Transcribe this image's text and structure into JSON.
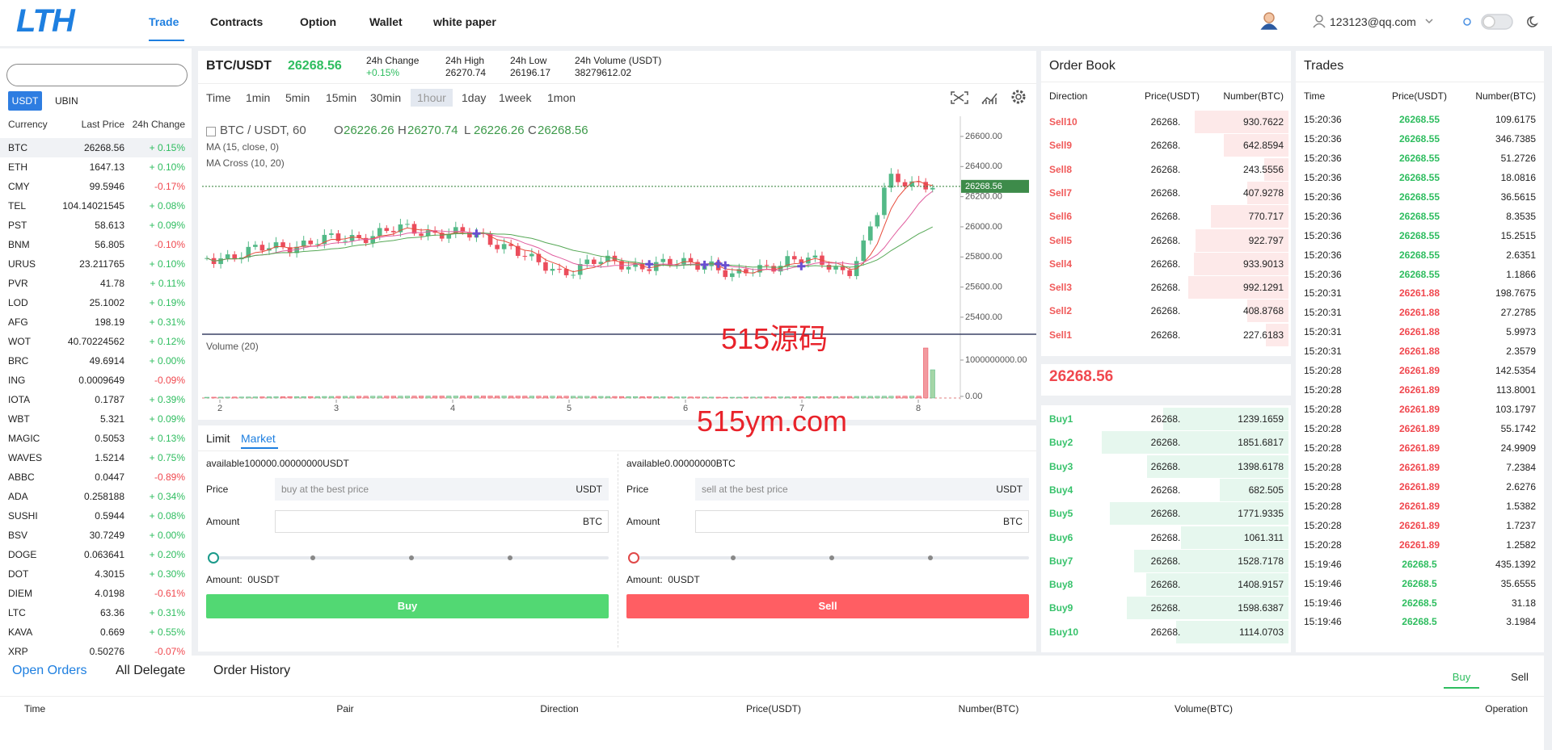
{
  "nav": {
    "logo": "LTH",
    "menu": [
      "Trade",
      "Contracts",
      "Option",
      "Wallet",
      "white paper"
    ],
    "user": "123123@qq.com"
  },
  "markets": {
    "tabs": [
      "USDT",
      "UBIN"
    ],
    "headers": [
      "Currency",
      "Last Price",
      "24h Change"
    ],
    "rows": [
      [
        "BTC",
        "26268.56",
        "+ 0.15%"
      ],
      [
        "ETH",
        "1647.13",
        "+ 0.10%"
      ],
      [
        "CMY",
        "99.5946",
        "-0.17%"
      ],
      [
        "TEL",
        "104.14021545",
        "+ 0.08%"
      ],
      [
        "PST",
        "58.613",
        "+ 0.09%"
      ],
      [
        "BNM",
        "56.805",
        "-0.10%"
      ],
      [
        "URUS",
        "23.211765",
        "+ 0.10%"
      ],
      [
        "PVR",
        "41.78",
        "+ 0.11%"
      ],
      [
        "LOD",
        "25.1002",
        "+ 0.19%"
      ],
      [
        "AFG",
        "198.19",
        "+ 0.31%"
      ],
      [
        "WOT",
        "40.70224562",
        "+ 0.12%"
      ],
      [
        "BRC",
        "49.6914",
        "+ 0.00%"
      ],
      [
        "ING",
        "0.0009649",
        "-0.09%"
      ],
      [
        "IOTA",
        "0.1787",
        "+ 0.39%"
      ],
      [
        "WBT",
        "5.321",
        "+ 0.09%"
      ],
      [
        "MAGIC",
        "0.5053",
        "+ 0.13%"
      ],
      [
        "WAVES",
        "1.5214",
        "+ 0.75%"
      ],
      [
        "ABBC",
        "0.0447",
        "-0.89%"
      ],
      [
        "ADA",
        "0.258188",
        "+ 0.34%"
      ],
      [
        "SUSHI",
        "0.5944",
        "+ 0.08%"
      ],
      [
        "BSV",
        "30.7249",
        "+ 0.00%"
      ],
      [
        "DOGE",
        "0.063641",
        "+ 0.20%"
      ],
      [
        "DOT",
        "4.3015",
        "+ 0.30%"
      ],
      [
        "DIEM",
        "4.0198",
        "-0.61%"
      ],
      [
        "LTC",
        "63.36",
        "+ 0.31%"
      ],
      [
        "KAVA",
        "0.669",
        "+ 0.55%"
      ],
      [
        "XRP",
        "0.50276",
        "-0.07%"
      ]
    ]
  },
  "ticker": {
    "pair": "BTC/USDT",
    "price": "26268.56",
    "stats": [
      {
        "label": "24h Change",
        "value": "+0.15%"
      },
      {
        "label": "24h High",
        "value": "26270.74"
      },
      {
        "label": "24h Low",
        "value": "26196.17"
      },
      {
        "label": "24h Volume (USDT)",
        "value": "38279612.02"
      }
    ]
  },
  "intervals": [
    "Time",
    "1min",
    "5min",
    "15min",
    "30min",
    "1hour",
    "1day",
    "1week",
    "1mon"
  ],
  "price_chart": {
    "type": "candlestick",
    "symbol": "BTC / USDT, 60",
    "ohlc": [
      {
        "key": "O",
        "value": "26226.26"
      },
      {
        "key": "H",
        "value": "26270.74"
      },
      {
        "key": "L",
        "value": "26226.26"
      },
      {
        "key": "C",
        "value": "26268.56"
      }
    ],
    "studies": [
      "MA (15, close, 0)",
      "MA Cross (10, 20)"
    ],
    "volume_study": "Volume (20)",
    "ylim": [
      25287,
      26734
    ],
    "yticks": [
      {
        "value": 26600,
        "label": "26600.00"
      },
      {
        "value": 26400,
        "label": "26400.00"
      },
      {
        "value": 26200,
        "label": "26200.00"
      },
      {
        "value": 26000,
        "label": "26000.00"
      },
      {
        "value": 25800,
        "label": "25800.00"
      },
      {
        "value": 25600,
        "label": "25600.00"
      },
      {
        "value": 25400,
        "label": "25400.00"
      }
    ],
    "volume_ylim": [
      -89000000,
      1578000000
    ],
    "volume_yticks": [
      {
        "value": 1000000000,
        "label": "1000000000.00"
      },
      {
        "value": 0,
        "label": "0.00"
      }
    ],
    "xlim": [
      1.847,
      8.361
    ],
    "xticks": [
      2,
      3,
      4,
      5,
      6,
      7,
      8
    ],
    "last_price": 26268.56
  },
  "watermark": [
    "515源码",
    "515ym.com"
  ],
  "trade_form": {
    "tabs": [
      "Limit",
      "Market"
    ],
    "buy": {
      "available": "available100000.00000000USDT",
      "price_label": "Price",
      "price_placeholder": "buy at the best price",
      "price_unit": "USDT",
      "amount_label": "Amount",
      "amount_unit": "BTC",
      "total": "Amount:  0USDT",
      "button": "Buy"
    },
    "sell": {
      "available": "available0.00000000BTC",
      "price_label": "Price",
      "price_placeholder": "sell at the best price",
      "price_unit": "USDT",
      "amount_label": "Amount",
      "amount_unit": "BTC",
      "total": "Amount:  0USDT",
      "button": "Sell"
    }
  },
  "order_book": {
    "title": "Order Book",
    "headers": [
      "Direction",
      "Price(USDT)",
      "Number(BTC)"
    ],
    "sells": [
      [
        "Sell10",
        "26268.",
        "930.7622"
      ],
      [
        "Sell9",
        "26268.",
        "642.8594"
      ],
      [
        "Sell8",
        "26268.",
        "243.5556"
      ],
      [
        "Sell7",
        "26268.",
        "407.9278"
      ],
      [
        "Sell6",
        "26268.",
        "770.717"
      ],
      [
        "Sell5",
        "26268.",
        "922.797"
      ],
      [
        "Sell4",
        "26268.",
        "933.9013"
      ],
      [
        "Sell3",
        "26268.",
        "992.1291"
      ],
      [
        "Sell2",
        "26268.",
        "408.8768"
      ],
      [
        "Sell1",
        "26268.",
        "227.6183"
      ]
    ],
    "mid_price": "26268.56",
    "buys": [
      [
        "Buy1",
        "26268.",
        "1239.1659"
      ],
      [
        "Buy2",
        "26268.",
        "1851.6817"
      ],
      [
        "Buy3",
        "26268.",
        "1398.6178"
      ],
      [
        "Buy4",
        "26268.",
        "682.505"
      ],
      [
        "Buy5",
        "26268.",
        "1771.9335"
      ],
      [
        "Buy6",
        "26268.",
        "1061.311"
      ],
      [
        "Buy7",
        "26268.",
        "1528.7178"
      ],
      [
        "Buy8",
        "26268.",
        "1408.9157"
      ],
      [
        "Buy9",
        "26268.",
        "1598.6387"
      ],
      [
        "Buy10",
        "26268.",
        "1114.0703"
      ]
    ]
  },
  "trades": {
    "title": "Trades",
    "headers": [
      "Time",
      "Price(USDT)",
      "Number(BTC)"
    ],
    "rows": [
      [
        "15:20:36",
        "26268.55",
        "109.6175",
        "#2ebd5f"
      ],
      [
        "15:20:36",
        "26268.55",
        "346.7385",
        "#2ebd5f"
      ],
      [
        "15:20:36",
        "26268.55",
        "51.2726",
        "#2ebd5f"
      ],
      [
        "15:20:36",
        "26268.55",
        "18.0816",
        "#2ebd5f"
      ],
      [
        "15:20:36",
        "26268.55",
        "36.5615",
        "#2ebd5f"
      ],
      [
        "15:20:36",
        "26268.55",
        "8.3535",
        "#2ebd5f"
      ],
      [
        "15:20:36",
        "26268.55",
        "15.2515",
        "#2ebd5f"
      ],
      [
        "15:20:36",
        "26268.55",
        "2.6351",
        "#2ebd5f"
      ],
      [
        "15:20:36",
        "26268.55",
        "1.1866",
        "#2ebd5f"
      ],
      [
        "15:20:31",
        "26261.88",
        "198.7675",
        "#f0484f"
      ],
      [
        "15:20:31",
        "26261.88",
        "27.2785",
        "#f0484f"
      ],
      [
        "15:20:31",
        "26261.88",
        "5.9973",
        "#f0484f"
      ],
      [
        "15:20:31",
        "26261.88",
        "2.3579",
        "#f0484f"
      ],
      [
        "15:20:28",
        "26261.89",
        "142.5354",
        "#f0484f"
      ],
      [
        "15:20:28",
        "26261.89",
        "113.8001",
        "#f0484f"
      ],
      [
        "15:20:28",
        "26261.89",
        "103.1797",
        "#f0484f"
      ],
      [
        "15:20:28",
        "26261.89",
        "55.1742",
        "#f0484f"
      ],
      [
        "15:20:28",
        "26261.89",
        "24.9909",
        "#f0484f"
      ],
      [
        "15:20:28",
        "26261.89",
        "7.2384",
        "#f0484f"
      ],
      [
        "15:20:28",
        "26261.89",
        "2.6276",
        "#f0484f"
      ],
      [
        "15:20:28",
        "26261.89",
        "1.5382",
        "#f0484f"
      ],
      [
        "15:20:28",
        "26261.89",
        "1.7237",
        "#f0484f"
      ],
      [
        "15:20:28",
        "26261.89",
        "1.2582",
        "#f0484f"
      ],
      [
        "15:19:46",
        "26268.5",
        "435.1392",
        "#2ebd5f"
      ],
      [
        "15:19:46",
        "26268.5",
        "35.6555",
        "#2ebd5f"
      ],
      [
        "15:19:46",
        "26268.5",
        "31.18",
        "#2ebd5f"
      ],
      [
        "15:19:46",
        "26268.5",
        "3.1984",
        "#2ebd5f"
      ]
    ]
  },
  "orders": {
    "tabs": [
      "Open Orders",
      "All Delegate"
    ],
    "title": "Order History",
    "sides": [
      "Buy",
      "Sell"
    ],
    "headers": [
      "Time",
      "Pair",
      "Direction",
      "Price(USDT)",
      "Number(BTC)",
      "Volume(BTC)",
      "Operation"
    ]
  }
}
